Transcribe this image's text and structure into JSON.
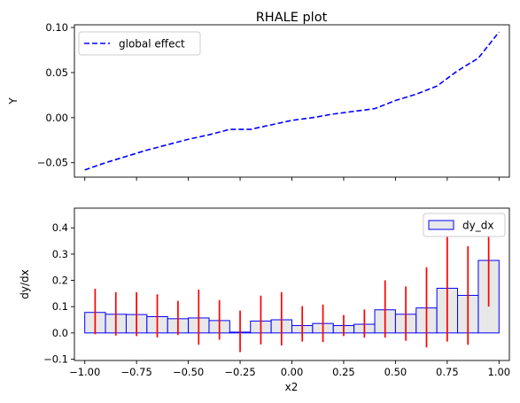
{
  "chart_data": [
    {
      "type": "line",
      "title": "RHALE plot",
      "xlabel": "",
      "ylabel": "Y",
      "xlim": [
        -1.05,
        1.05
      ],
      "ylim": [
        -0.066,
        0.103
      ],
      "yticks": [
        -0.05,
        0.0,
        0.05,
        0.1
      ],
      "ytick_labels": [
        "−0.05",
        "0.00",
        "0.05",
        "0.10"
      ],
      "xticks": [
        -1.0,
        -0.75,
        -0.5,
        -0.25,
        0.0,
        0.25,
        0.5,
        0.75,
        1.0
      ],
      "legend": {
        "position": "top-left",
        "entries": [
          "global effect"
        ]
      },
      "series": [
        {
          "name": "global effect",
          "color": "#0000ff",
          "style": "dashed",
          "x": [
            -1.0,
            -0.9,
            -0.8,
            -0.7,
            -0.6,
            -0.5,
            -0.4,
            -0.3,
            -0.2,
            -0.1,
            0.0,
            0.1,
            0.2,
            0.3,
            0.4,
            0.5,
            0.6,
            0.7,
            0.8,
            0.9,
            1.0
          ],
          "y": [
            -0.058,
            -0.05,
            -0.043,
            -0.036,
            -0.03,
            -0.024,
            -0.019,
            -0.013,
            -0.013,
            -0.008,
            -0.003,
            0.0,
            0.004,
            0.007,
            0.01,
            0.019,
            0.026,
            0.035,
            0.052,
            0.066,
            0.095
          ]
        }
      ]
    },
    {
      "type": "bar",
      "title": "",
      "xlabel": "x2",
      "ylabel": "dy/dx",
      "xlim": [
        -1.05,
        1.05
      ],
      "ylim": [
        -0.105,
        0.475
      ],
      "yticks": [
        -0.1,
        0.0,
        0.1,
        0.2,
        0.3,
        0.4
      ],
      "ytick_labels": [
        "−0.1",
        "0.0",
        "0.1",
        "0.2",
        "0.3",
        "0.4"
      ],
      "xticks": [
        -1.0,
        -0.75,
        -0.5,
        -0.25,
        0.0,
        0.25,
        0.5,
        0.75,
        1.0
      ],
      "xtick_labels": [
        "−1.00",
        "−0.75",
        "−0.50",
        "−0.25",
        "0.00",
        "0.25",
        "0.50",
        "0.75",
        "1.00"
      ],
      "legend": {
        "position": "top-right",
        "entries": [
          "dy_dx"
        ]
      },
      "bar_fill": "#e8e8e8",
      "bar_edge": "#0000ff",
      "error_color": "#ff0000",
      "bins": [
        {
          "start": -1.0,
          "end": -0.9,
          "value": 0.078,
          "err_low": -0.005,
          "err_high": 0.168
        },
        {
          "start": -0.9,
          "end": -0.8,
          "value": 0.071,
          "err_low": -0.01,
          "err_high": 0.155
        },
        {
          "start": -0.8,
          "end": -0.7,
          "value": 0.07,
          "err_low": -0.012,
          "err_high": 0.155
        },
        {
          "start": -0.7,
          "end": -0.6,
          "value": 0.062,
          "err_low": -0.017,
          "err_high": 0.147
        },
        {
          "start": -0.6,
          "end": -0.5,
          "value": 0.054,
          "err_low": -0.008,
          "err_high": 0.122
        },
        {
          "start": -0.5,
          "end": -0.4,
          "value": 0.057,
          "err_low": -0.045,
          "err_high": 0.165
        },
        {
          "start": -0.4,
          "end": -0.3,
          "value": 0.047,
          "err_low": -0.026,
          "err_high": 0.125
        },
        {
          "start": -0.3,
          "end": -0.2,
          "value": 0.003,
          "err_low": -0.073,
          "err_high": 0.085
        },
        {
          "start": -0.2,
          "end": -0.1,
          "value": 0.045,
          "err_low": -0.044,
          "err_high": 0.142
        },
        {
          "start": -0.1,
          "end": 0.0,
          "value": 0.05,
          "err_low": -0.048,
          "err_high": 0.155
        },
        {
          "start": 0.0,
          "end": 0.1,
          "value": 0.028,
          "err_low": -0.033,
          "err_high": 0.102
        },
        {
          "start": 0.1,
          "end": 0.2,
          "value": 0.036,
          "err_low": -0.035,
          "err_high": 0.108
        },
        {
          "start": 0.2,
          "end": 0.3,
          "value": 0.028,
          "err_low": -0.012,
          "err_high": 0.068
        },
        {
          "start": 0.3,
          "end": 0.4,
          "value": 0.033,
          "err_low": -0.018,
          "err_high": 0.089
        },
        {
          "start": 0.4,
          "end": 0.5,
          "value": 0.088,
          "err_low": -0.018,
          "err_high": 0.2
        },
        {
          "start": 0.5,
          "end": 0.6,
          "value": 0.071,
          "err_low": -0.03,
          "err_high": 0.177
        },
        {
          "start": 0.6,
          "end": 0.7,
          "value": 0.095,
          "err_low": -0.055,
          "err_high": 0.25
        },
        {
          "start": 0.7,
          "end": 0.8,
          "value": 0.17,
          "err_low": -0.033,
          "err_high": 0.38
        },
        {
          "start": 0.8,
          "end": 0.9,
          "value": 0.143,
          "err_low": -0.045,
          "err_high": 0.33
        },
        {
          "start": 0.9,
          "end": 1.0,
          "value": 0.276,
          "err_low": 0.1,
          "err_high": 0.445
        }
      ]
    }
  ]
}
